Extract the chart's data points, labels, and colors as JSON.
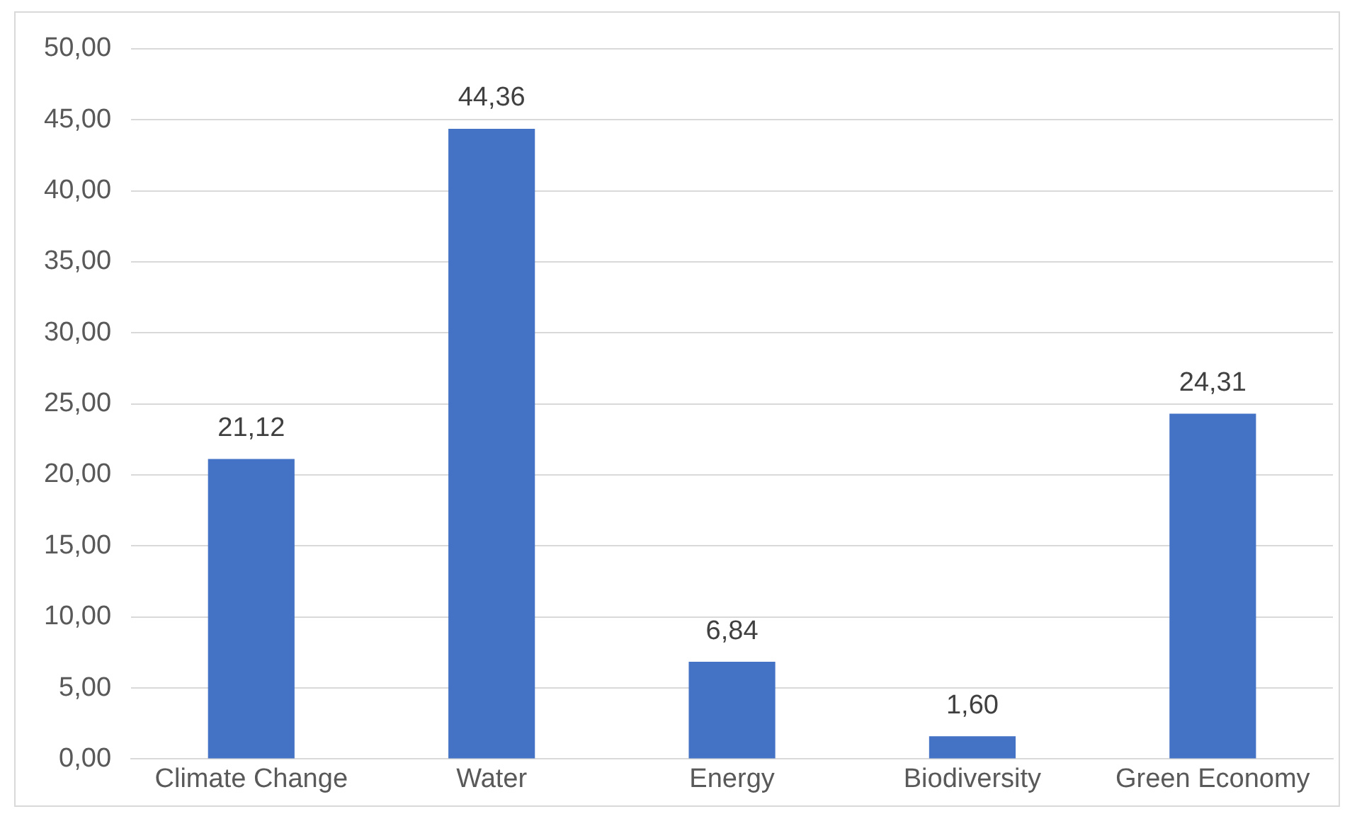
{
  "chart_data": {
    "type": "bar",
    "categories": [
      "Climate Change",
      "Water",
      "Energy",
      "Biodiversity",
      "Green Economy"
    ],
    "values": [
      21.12,
      44.36,
      6.84,
      1.6,
      24.31
    ],
    "value_labels": [
      "21,12",
      "44,36",
      "6,84",
      "1,60",
      "24,31"
    ],
    "color": "#4472c4",
    "ylim": [
      0,
      50
    ],
    "yticks": [
      {
        "value": 0,
        "label": "0,00"
      },
      {
        "value": 5,
        "label": "5,00"
      },
      {
        "value": 10,
        "label": "10,00"
      },
      {
        "value": 15,
        "label": "15,00"
      },
      {
        "value": 20,
        "label": "20,00"
      },
      {
        "value": 25,
        "label": "25,00"
      },
      {
        "value": 30,
        "label": "30,00"
      },
      {
        "value": 35,
        "label": "35,00"
      },
      {
        "value": 40,
        "label": "40,00"
      },
      {
        "value": 45,
        "label": "45,00"
      },
      {
        "value": 50,
        "label": "50,00"
      }
    ],
    "grid": "y",
    "legend": false
  }
}
